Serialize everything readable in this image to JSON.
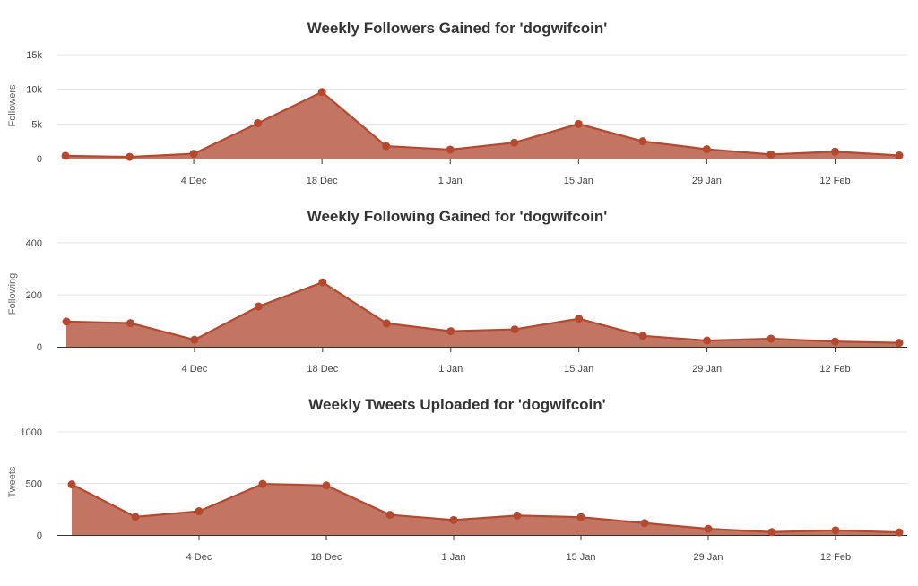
{
  "colors": {
    "series": "#b5492f",
    "fill": "#c27562"
  },
  "x_tick_labels": [
    "4 Dec",
    "18 Dec",
    "1 Jan",
    "15 Jan",
    "29 Jan",
    "12 Feb"
  ],
  "chart_data": [
    {
      "type": "area",
      "title": "Weekly Followers Gained for 'dogwifcoin'",
      "ylabel": "Followers",
      "ylim": [
        0,
        15000
      ],
      "yticks": [
        0,
        5000,
        10000,
        15000
      ],
      "ytick_labels": [
        "0",
        "5k",
        "10k",
        "15k"
      ],
      "x_index": [
        0,
        1,
        2,
        3,
        4,
        5,
        6,
        7,
        8,
        9,
        10,
        11,
        12,
        13
      ],
      "values": [
        400,
        250,
        700,
        5100,
        9600,
        1800,
        1300,
        2300,
        5000,
        2500,
        1350,
        600,
        1000,
        450
      ],
      "xticks": [
        2,
        4,
        6,
        8,
        10,
        12
      ]
    },
    {
      "type": "area",
      "title": "Weekly Following Gained for 'dogwifcoin'",
      "ylabel": "Following",
      "ylim": [
        0,
        400
      ],
      "yticks": [
        0,
        200,
        400
      ],
      "ytick_labels": [
        "0",
        "200",
        "400"
      ],
      "x_index": [
        0,
        1,
        2,
        3,
        4,
        5,
        6,
        7,
        8,
        9,
        10,
        11,
        12,
        13
      ],
      "values": [
        97,
        91,
        27,
        155,
        248,
        90,
        60,
        67,
        108,
        42,
        24,
        31,
        20,
        15
      ],
      "xticks": [
        2,
        4,
        6,
        8,
        10,
        12
      ]
    },
    {
      "type": "area",
      "title": "Weekly Tweets Uploaded for 'dogwifcoin'",
      "ylabel": "Tweets",
      "ylim": [
        0,
        1000
      ],
      "yticks": [
        0,
        500,
        1000
      ],
      "ytick_labels": [
        "0",
        "500",
        "1000"
      ],
      "x_index": [
        0,
        1,
        2,
        3,
        4,
        5,
        6,
        7,
        8,
        9,
        10,
        11,
        12,
        13
      ],
      "values": [
        490,
        175,
        230,
        495,
        480,
        195,
        145,
        188,
        172,
        115,
        60,
        28,
        45,
        25
      ],
      "xticks": [
        2,
        4,
        6,
        8,
        10,
        12
      ]
    }
  ]
}
